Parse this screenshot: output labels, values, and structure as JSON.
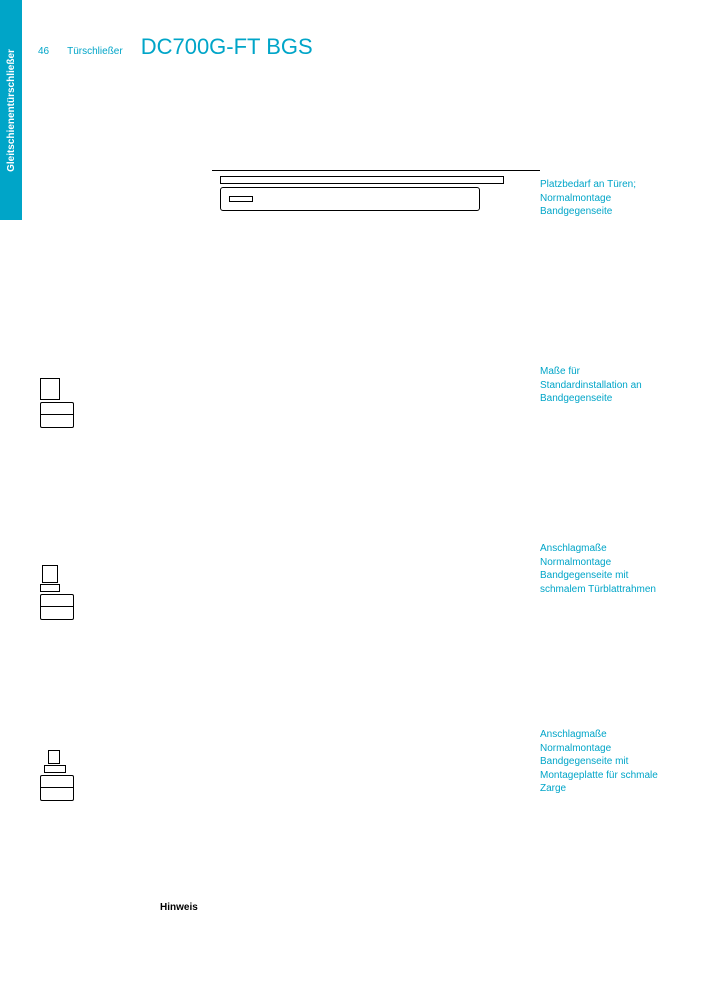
{
  "page": {
    "number": "46",
    "category": "Türschließer",
    "side_tab": "Gleitschienentürschließer"
  },
  "product": {
    "title": "DC700G-FT BGS"
  },
  "captions": {
    "c1": "Platzbedarf an Türen; Normalmontage Bandgegenseite",
    "c2": "Maße für Standardinstallation an Bandgegenseite",
    "c3": "Anschlagmaße Normalmontage Bandgegenseite mit schmalem Türblattrahmen",
    "c4": "Anschlagmaße Normalmontage Bandgegenseite mit Montageplatte für schmale Zarge"
  },
  "note": {
    "label": "Hinweis"
  },
  "colors": {
    "brand": "#00a5c8",
    "text": "#000000",
    "background": "#ffffff",
    "line": "#000000"
  },
  "diagrams": {
    "d1": {
      "type": "technical-drawing",
      "slide_width": 284,
      "body_width": 260,
      "body_height": 24
    },
    "side_views": {
      "type": "cross-section",
      "count": 3
    }
  }
}
